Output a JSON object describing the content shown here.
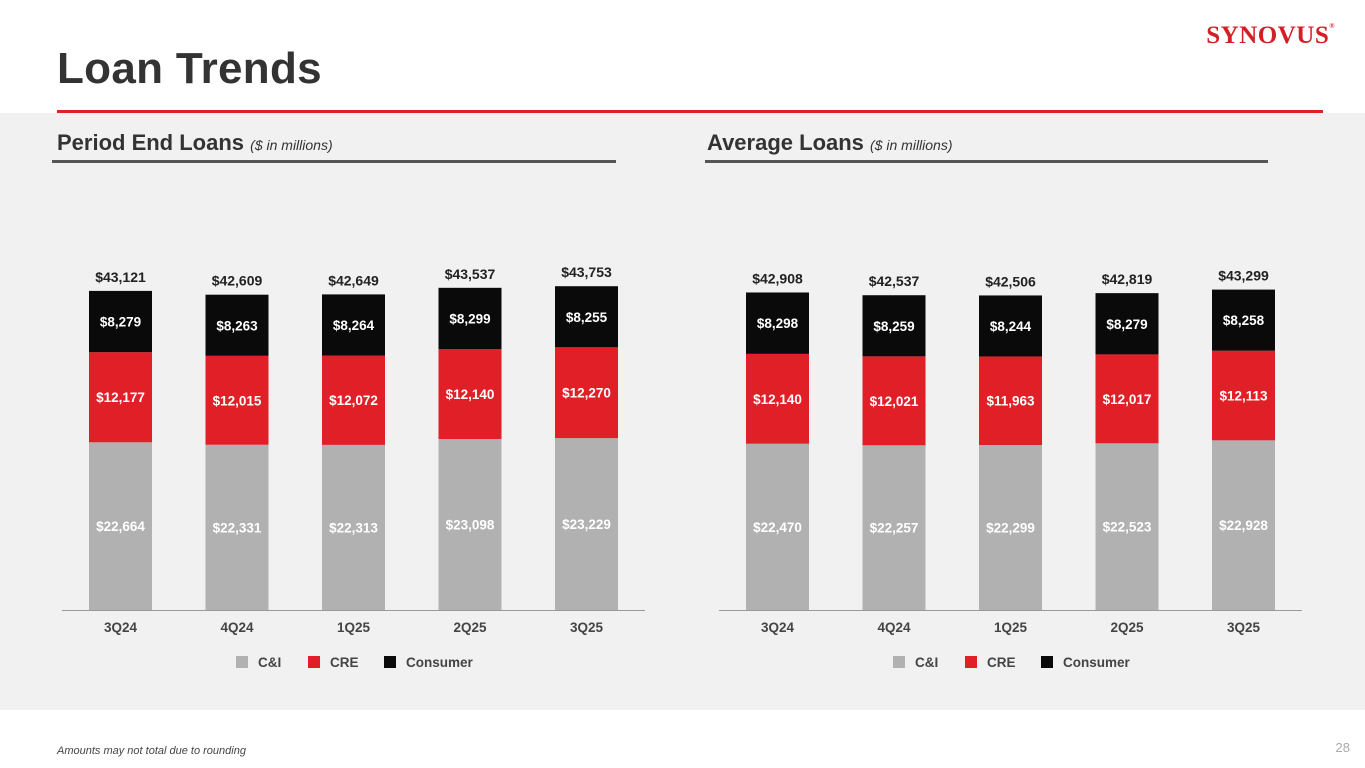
{
  "slide": {
    "title": "Loan Trends",
    "logo_text": "SYNOVUS",
    "logo_mark": "®",
    "footnote": "Amounts may not total due to rounding",
    "page_number": "28"
  },
  "colors": {
    "ci": "#b1b1b1",
    "cre": "#e01f26",
    "consumer": "#0a0a0a",
    "accent": "#e01f26"
  },
  "chart_data": [
    {
      "type": "bar",
      "stacked": true,
      "title": "Period End Loans",
      "units": "($ in millions)",
      "categories": [
        "3Q24",
        "4Q24",
        "1Q25",
        "2Q25",
        "3Q25"
      ],
      "series": [
        {
          "name": "C&I",
          "values": [
            22664,
            22331,
            22313,
            23098,
            23229
          ],
          "labels": [
            "$22,664",
            "$22,331",
            "$22,313",
            "$23,098",
            "$23,229"
          ]
        },
        {
          "name": "CRE",
          "values": [
            12177,
            12015,
            12072,
            12140,
            12270
          ],
          "labels": [
            "$12,177",
            "$12,015",
            "$12,072",
            "$12,140",
            "$12,270"
          ]
        },
        {
          "name": "Consumer",
          "values": [
            8279,
            8263,
            8264,
            8299,
            8255
          ],
          "labels": [
            "$8,279",
            "$8,263",
            "$8,264",
            "$8,299",
            "$8,255"
          ]
        }
      ],
      "totals": [
        43121,
        42609,
        42649,
        43537,
        43753
      ],
      "total_labels": [
        "$43,121",
        "$42,609",
        "$42,649",
        "$43,537",
        "$43,753"
      ],
      "ylim": [
        0,
        50000
      ],
      "legend_position": "bottom"
    },
    {
      "type": "bar",
      "stacked": true,
      "title": "Average Loans",
      "units": "($ in millions)",
      "categories": [
        "3Q24",
        "4Q24",
        "1Q25",
        "2Q25",
        "3Q25"
      ],
      "series": [
        {
          "name": "C&I",
          "values": [
            22470,
            22257,
            22299,
            22523,
            22928
          ],
          "labels": [
            "$22,470",
            "$22,257",
            "$22,299",
            "$22,523",
            "$22,928"
          ]
        },
        {
          "name": "CRE",
          "values": [
            12140,
            12021,
            11963,
            12017,
            12113
          ],
          "labels": [
            "$12,140",
            "$12,021",
            "$11,963",
            "$12,017",
            "$12,113"
          ]
        },
        {
          "name": "Consumer",
          "values": [
            8298,
            8259,
            8244,
            8279,
            8258
          ],
          "labels": [
            "$8,298",
            "$8,259",
            "$8,244",
            "$8,279",
            "$8,258"
          ]
        }
      ],
      "totals": [
        42908,
        42537,
        42506,
        42819,
        43299
      ],
      "total_labels": [
        "$42,908",
        "$42,537",
        "$42,506",
        "$42,819",
        "$43,299"
      ],
      "ylim": [
        0,
        50000
      ],
      "legend_position": "bottom"
    }
  ]
}
